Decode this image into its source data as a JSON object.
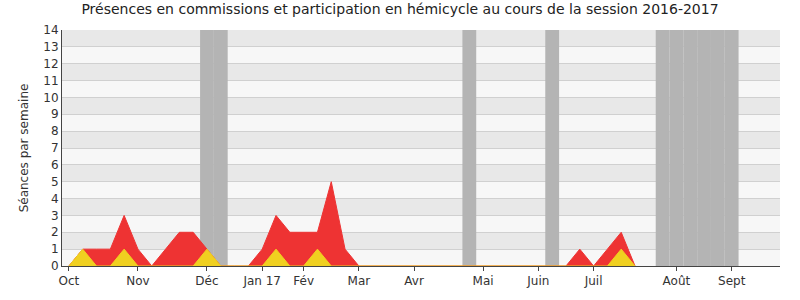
{
  "chart_data": {
    "type": "area",
    "title": "Présences en commissions et participation en hémicycle au cours de la session 2016-2017",
    "y_label": "Séances par semaine",
    "categories": [
      "Oct",
      null,
      null,
      null,
      null,
      "Nov",
      null,
      null,
      null,
      null,
      "Déc",
      null,
      null,
      null,
      "Jan 17",
      null,
      null,
      "Fév",
      null,
      null,
      null,
      "Mar",
      null,
      null,
      null,
      "Avr",
      null,
      null,
      null,
      null,
      "Mai",
      null,
      null,
      null,
      "Juin",
      null,
      null,
      null,
      "Juil",
      null,
      null,
      null,
      null,
      null,
      "Août",
      null,
      null,
      null,
      "Sept",
      null,
      null,
      null
    ],
    "series": [
      {
        "type": "bar",
        "color": "#b4b4b4",
        "values": [
          0,
          0,
          0,
          0,
          0,
          0,
          0,
          0,
          0,
          0,
          14,
          14,
          0,
          0,
          0,
          0,
          0,
          0,
          0,
          0,
          0,
          0,
          0,
          0,
          0,
          0,
          0,
          0,
          0,
          14,
          0,
          0,
          0,
          0,
          0,
          14,
          0,
          0,
          0,
          0,
          0,
          0,
          0,
          14,
          14,
          14,
          14,
          14,
          14,
          0,
          0,
          0
        ]
      },
      {
        "type": "area",
        "color": "#ee3333",
        "values": [
          0,
          1,
          1,
          1,
          3,
          1,
          0,
          1,
          2,
          2,
          1,
          0,
          0,
          0,
          1,
          3,
          2,
          2,
          2,
          5,
          1,
          0,
          0,
          0,
          0,
          0,
          0,
          0,
          0,
          0,
          0,
          0,
          0,
          0,
          0,
          0,
          0,
          1,
          0,
          1,
          2,
          0,
          null,
          null,
          null,
          null,
          null,
          null,
          null,
          null,
          null,
          null
        ]
      },
      {
        "type": "area",
        "color": "#f0d020",
        "values": [
          0,
          1,
          0,
          0,
          1,
          0,
          0,
          0,
          0,
          0,
          1,
          0,
          0,
          0,
          0,
          1,
          0,
          0,
          1,
          0,
          0,
          0,
          0,
          0,
          0,
          0,
          0,
          0,
          0,
          0,
          0,
          0,
          0,
          0,
          0,
          0,
          0,
          0,
          0,
          0,
          1,
          0,
          null,
          null,
          null,
          null,
          null,
          null,
          null,
          null,
          null,
          null
        ]
      }
    ],
    "ylim": [
      0,
      14
    ],
    "yticks": [
      0,
      1,
      2,
      3,
      4,
      5,
      6,
      7,
      8,
      9,
      10,
      11,
      12,
      13,
      14
    ],
    "grid": true
  }
}
